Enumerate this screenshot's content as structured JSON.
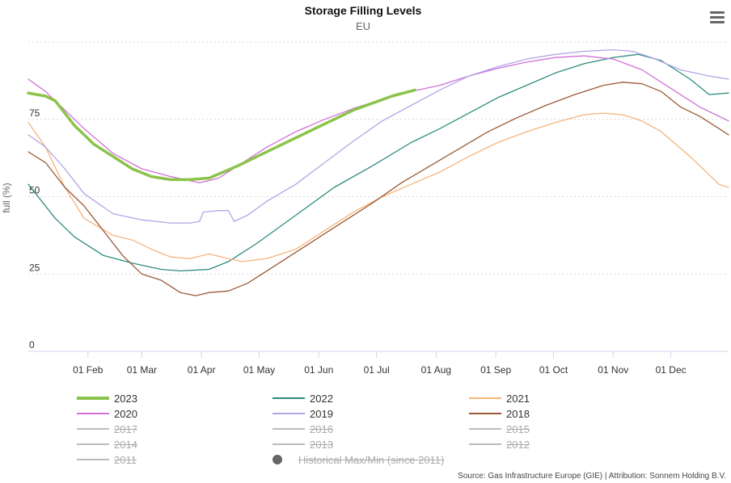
{
  "header": {
    "title": "Storage Filling Levels",
    "subtitle": "EU"
  },
  "menu": {
    "icon": "hamburger-menu-icon"
  },
  "source": "Source: Gas Infrastructure Europe (GIE) | Attribution: Sonnem Holding B.V.",
  "chart_data": {
    "type": "line",
    "title": "Storage Filling Levels",
    "subtitle": "EU",
    "ylabel": "full (%)",
    "ylim": [
      0,
      100
    ],
    "yticks": [
      0,
      25,
      50,
      75
    ],
    "ytick_labels": [
      "0",
      "25",
      "50",
      "75"
    ],
    "x_unit": "day_of_year",
    "xlim": [
      1,
      365
    ],
    "xticks": [
      32,
      60,
      91,
      121,
      152,
      182,
      213,
      244,
      274,
      305,
      335
    ],
    "xtick_labels": [
      "01 Feb",
      "01 Mar",
      "01 Apr",
      "01 May",
      "01 Jun",
      "01 Jul",
      "01 Aug",
      "01 Sep",
      "01 Oct",
      "01 Nov",
      "01 Dec"
    ],
    "series": [
      {
        "name": "2023",
        "color": "#8bc34a",
        "width": 3.5,
        "visible": true,
        "points": [
          [
            1,
            83.5
          ],
          [
            10,
            82.5
          ],
          [
            15,
            81
          ],
          [
            25,
            73
          ],
          [
            35,
            67
          ],
          [
            45,
            63
          ],
          [
            55,
            59
          ],
          [
            65,
            56.5
          ],
          [
            75,
            55.5
          ],
          [
            85,
            55.5
          ],
          [
            95,
            56
          ],
          [
            110,
            60
          ],
          [
            130,
            66
          ],
          [
            150,
            72
          ],
          [
            170,
            78
          ],
          [
            190,
            82.5
          ],
          [
            202,
            84.5
          ]
        ]
      },
      {
        "name": "2022",
        "color": "#2e8b80",
        "width": 1.3,
        "visible": true,
        "points": [
          [
            1,
            54
          ],
          [
            15,
            43
          ],
          [
            25,
            37
          ],
          [
            40,
            31
          ],
          [
            55,
            28.5
          ],
          [
            70,
            26.5
          ],
          [
            80,
            26
          ],
          [
            95,
            26.5
          ],
          [
            105,
            29
          ],
          [
            120,
            35
          ],
          [
            140,
            44
          ],
          [
            160,
            53
          ],
          [
            180,
            60
          ],
          [
            200,
            67.5
          ],
          [
            215,
            72
          ],
          [
            230,
            77
          ],
          [
            245,
            82
          ],
          [
            260,
            86
          ],
          [
            275,
            90
          ],
          [
            290,
            93
          ],
          [
            305,
            95
          ],
          [
            318,
            96
          ],
          [
            330,
            94
          ],
          [
            345,
            88
          ],
          [
            355,
            83
          ],
          [
            365,
            83.5
          ]
        ]
      },
      {
        "name": "2021",
        "color": "#f5b47a",
        "width": 1.3,
        "visible": true,
        "points": [
          [
            1,
            74
          ],
          [
            10,
            66
          ],
          [
            20,
            53
          ],
          [
            30,
            43
          ],
          [
            45,
            37.5
          ],
          [
            55,
            36
          ],
          [
            65,
            33
          ],
          [
            75,
            30.5
          ],
          [
            85,
            30
          ],
          [
            95,
            31.5
          ],
          [
            105,
            30
          ],
          [
            112,
            29
          ],
          [
            125,
            30
          ],
          [
            140,
            33
          ],
          [
            155,
            39
          ],
          [
            170,
            45
          ],
          [
            185,
            50
          ],
          [
            200,
            54
          ],
          [
            215,
            58
          ],
          [
            230,
            63
          ],
          [
            245,
            67.5
          ],
          [
            260,
            71
          ],
          [
            275,
            74
          ],
          [
            290,
            76.5
          ],
          [
            300,
            77
          ],
          [
            310,
            76.5
          ],
          [
            320,
            74.5
          ],
          [
            330,
            71
          ],
          [
            345,
            63
          ],
          [
            355,
            57
          ],
          [
            360,
            54
          ],
          [
            365,
            53
          ]
        ]
      },
      {
        "name": "2020",
        "color": "#d070d8",
        "width": 1.3,
        "visible": true,
        "points": [
          [
            1,
            88
          ],
          [
            10,
            84
          ],
          [
            20,
            78
          ],
          [
            30,
            72
          ],
          [
            45,
            64
          ],
          [
            60,
            59
          ],
          [
            75,
            56.5
          ],
          [
            90,
            54.5
          ],
          [
            100,
            56
          ],
          [
            110,
            60
          ],
          [
            125,
            66
          ],
          [
            140,
            71
          ],
          [
            155,
            75
          ],
          [
            170,
            78.5
          ],
          [
            185,
            81.5
          ],
          [
            200,
            84
          ],
          [
            215,
            86
          ],
          [
            230,
            89
          ],
          [
            245,
            91.5
          ],
          [
            260,
            93.5
          ],
          [
            275,
            95
          ],
          [
            290,
            95.5
          ],
          [
            305,
            94.5
          ],
          [
            320,
            91
          ],
          [
            335,
            85
          ],
          [
            350,
            79
          ],
          [
            365,
            74.5
          ]
        ]
      },
      {
        "name": "2019",
        "color": "#b3a4e6",
        "width": 1.3,
        "visible": true,
        "points": [
          [
            1,
            70
          ],
          [
            10,
            66
          ],
          [
            20,
            59
          ],
          [
            30,
            51
          ],
          [
            45,
            44.5
          ],
          [
            60,
            42.5
          ],
          [
            75,
            41.5
          ],
          [
            85,
            41.5
          ],
          [
            90,
            42
          ],
          [
            92,
            45
          ],
          [
            100,
            45.5
          ],
          [
            105,
            45.5
          ],
          [
            108,
            42
          ],
          [
            115,
            44
          ],
          [
            125,
            48.5
          ],
          [
            140,
            54
          ],
          [
            155,
            61
          ],
          [
            170,
            68
          ],
          [
            185,
            74.5
          ],
          [
            200,
            79.5
          ],
          [
            215,
            84.5
          ],
          [
            230,
            89
          ],
          [
            245,
            92
          ],
          [
            260,
            94.5
          ],
          [
            275,
            96
          ],
          [
            290,
            97
          ],
          [
            305,
            97.5
          ],
          [
            315,
            97
          ],
          [
            325,
            95
          ],
          [
            340,
            91
          ],
          [
            355,
            89
          ],
          [
            365,
            88
          ]
        ]
      },
      {
        "name": "2018",
        "color": "#9a5a36",
        "width": 1.3,
        "visible": true,
        "points": [
          [
            1,
            64.5
          ],
          [
            10,
            61
          ],
          [
            20,
            53
          ],
          [
            30,
            47
          ],
          [
            40,
            39
          ],
          [
            50,
            31
          ],
          [
            60,
            25
          ],
          [
            70,
            23
          ],
          [
            80,
            19
          ],
          [
            88,
            18
          ],
          [
            95,
            19
          ],
          [
            105,
            19.5
          ],
          [
            115,
            22
          ],
          [
            125,
            26
          ],
          [
            135,
            30
          ],
          [
            150,
            36
          ],
          [
            165,
            42
          ],
          [
            180,
            48
          ],
          [
            195,
            54.5
          ],
          [
            210,
            60
          ],
          [
            225,
            65.5
          ],
          [
            240,
            71
          ],
          [
            255,
            75.5
          ],
          [
            270,
            79.5
          ],
          [
            285,
            83
          ],
          [
            300,
            86
          ],
          [
            310,
            87
          ],
          [
            320,
            86.5
          ],
          [
            330,
            84
          ],
          [
            340,
            79
          ],
          [
            350,
            76
          ],
          [
            360,
            72
          ],
          [
            365,
            70
          ]
        ]
      },
      {
        "name": "2017",
        "color": "#888888",
        "visible": false,
        "points": []
      },
      {
        "name": "2016",
        "color": "#888888",
        "visible": false,
        "points": []
      },
      {
        "name": "2015",
        "color": "#888888",
        "visible": false,
        "points": []
      },
      {
        "name": "2014",
        "color": "#888888",
        "visible": false,
        "points": []
      },
      {
        "name": "2013",
        "color": "#888888",
        "visible": false,
        "points": []
      },
      {
        "name": "2012",
        "color": "#888888",
        "visible": false,
        "points": []
      },
      {
        "name": "2011",
        "color": "#888888",
        "visible": false,
        "points": []
      }
    ],
    "range_series": {
      "name": "Historical Max/Min (since 2011)",
      "visible": false
    }
  }
}
